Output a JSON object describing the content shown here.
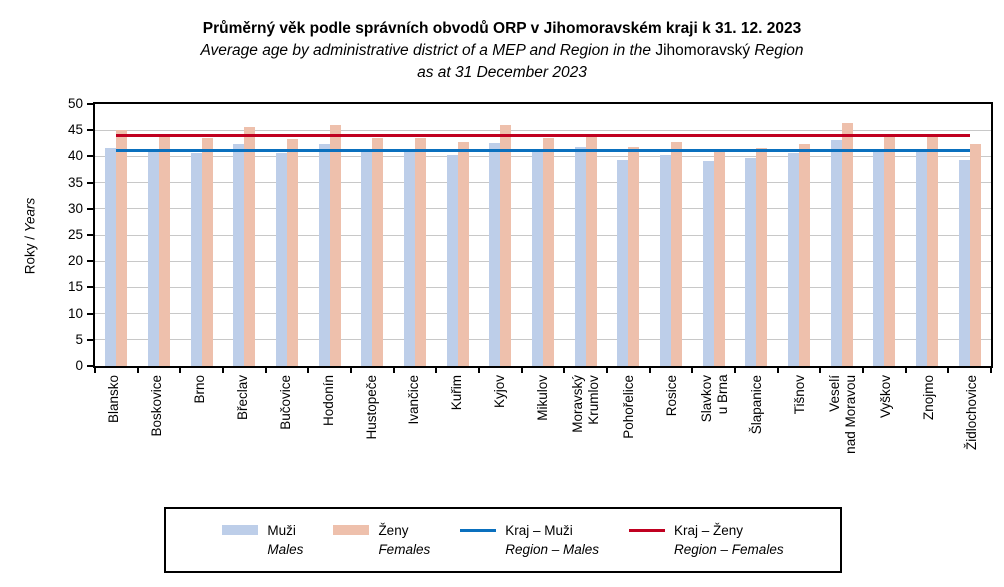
{
  "title": {
    "line1": "Průměrný věk podle správních obvodů ORP v Jihomoravském kraji k 31. 12. 2023",
    "line2_italic_a": "Average age by administrative district of a MEP and Region in the ",
    "line2_upright": "Jihomoravský",
    "line2_italic_b": " Region",
    "line3": "as at 31 December 2023"
  },
  "y_axis": {
    "label_cz": "Roky",
    "label_sep": " / ",
    "label_en": "Years",
    "ticks": [
      0,
      5,
      10,
      15,
      20,
      25,
      30,
      35,
      40,
      45,
      50
    ]
  },
  "chart_data": {
    "type": "bar",
    "title": "Průměrný věk podle správních obvodů ORP v Jihomoravském kraji k 31. 12. 2023",
    "subtitle": "Average age by administrative district of a MEP and Region in the Jihomoravský Region as at 31 December 2023",
    "xlabel": "",
    "ylabel": "Roky / Years",
    "ylim": [
      0,
      50
    ],
    "ytick_step": 5,
    "grid": true,
    "legend_position": "bottom",
    "categories": [
      "Blansko",
      "Boskovice",
      "Brno",
      "Břeclav",
      "Bučovice",
      "Hodonín",
      "Hustopeče",
      "Ivančice",
      "Kuřim",
      "Kyjov",
      "Mikulov",
      "Moravský\nKrumlov",
      "Pohořelice",
      "Rosice",
      "Slavkov\nu Brna",
      "Šlapanice",
      "Tišnov",
      "Veselí\nnad Moravou",
      "Vyškov",
      "Znojmo",
      "Židlochovice"
    ],
    "series": [
      {
        "name": "Muži",
        "name_en": "Males",
        "color": "#bdcee9",
        "values": [
          41.7,
          40.9,
          40.7,
          42.3,
          40.6,
          42.4,
          40.9,
          40.9,
          40.2,
          42.5,
          41.5,
          41.8,
          39.3,
          40.2,
          39.2,
          39.7,
          40.6,
          43.1,
          40.9,
          40.9,
          39.4
        ]
      },
      {
        "name": "Ženy",
        "name_en": "Females",
        "color": "#eec0ac",
        "values": [
          45.0,
          43.7,
          43.6,
          45.6,
          43.3,
          45.9,
          43.5,
          43.6,
          42.7,
          45.9,
          43.5,
          43.7,
          41.8,
          42.8,
          41.0,
          41.7,
          42.4,
          46.4,
          43.7,
          43.7,
          42.3
        ]
      }
    ],
    "lines": [
      {
        "name": "Kraj – Muži",
        "name_en": "Region – Males",
        "color": "#0a70be",
        "value": 41.1
      },
      {
        "name": "Kraj – Ženy",
        "name_en": "Region – Females",
        "color": "#c00020",
        "value": 44.0
      }
    ]
  },
  "legend": {
    "entries": [
      {
        "swatch": "bar",
        "color": "#bdcee9",
        "label_cz": "Muži",
        "label_en": "Males"
      },
      {
        "swatch": "bar",
        "color": "#eec0ac",
        "label_cz": "Ženy",
        "label_en": "Females"
      },
      {
        "swatch": "line",
        "color": "#0a70be",
        "label_cz": "Kraj – Muži",
        "label_en": "Region – Males"
      },
      {
        "swatch": "line",
        "color": "#c00020",
        "label_cz": "Kraj – Ženy",
        "label_en": "Region – Females"
      }
    ]
  }
}
